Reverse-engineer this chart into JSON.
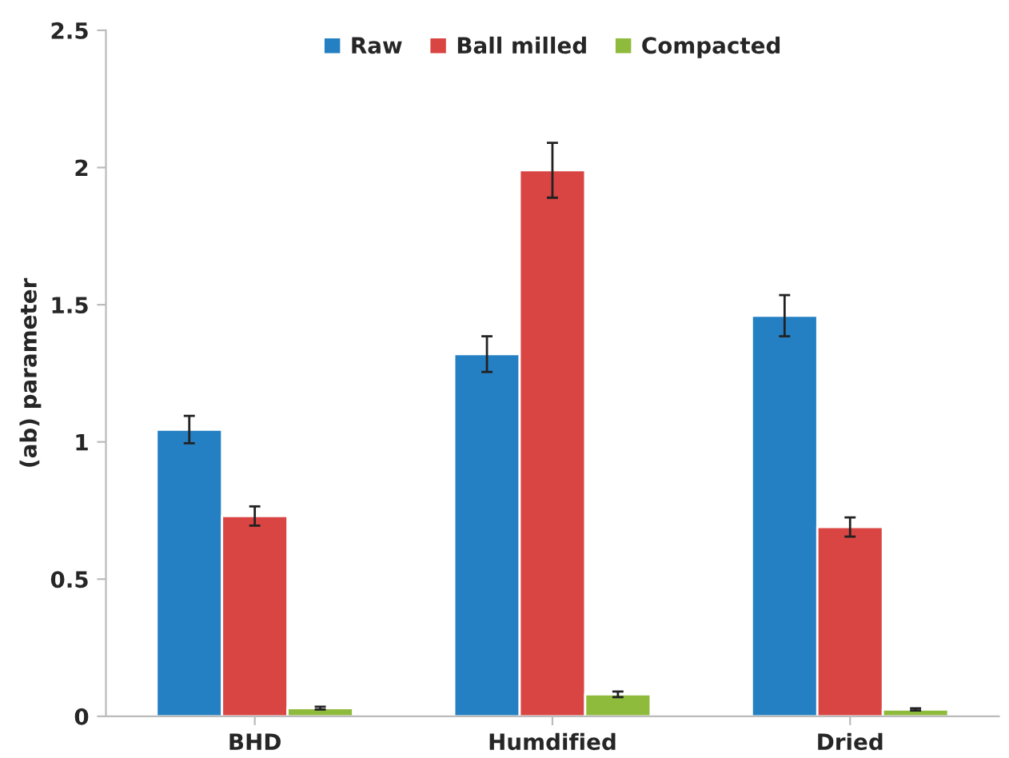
{
  "chart_data": {
    "type": "bar",
    "ylabel": "(ab) parameter",
    "categories": [
      "BHD",
      "Humdified",
      "Dried"
    ],
    "series": [
      {
        "name": "Raw",
        "color": "#2480c3",
        "values": [
          1.045,
          1.32,
          1.46
        ],
        "errors": [
          0.05,
          0.065,
          0.075
        ]
      },
      {
        "name": "Ball milled",
        "color": "#d94543",
        "values": [
          0.73,
          1.99,
          0.69
        ],
        "errors": [
          0.035,
          0.1,
          0.035
        ]
      },
      {
        "name": "Compacted",
        "color": "#8fbb3c",
        "values": [
          0.03,
          0.08,
          0.025
        ],
        "errors": [
          0.005,
          0.01,
          0.004
        ]
      }
    ],
    "ylim": [
      0,
      2.5
    ],
    "yticks": [
      0,
      0.5,
      1,
      1.5,
      2,
      2.5
    ],
    "grid": false,
    "legend": "top"
  }
}
